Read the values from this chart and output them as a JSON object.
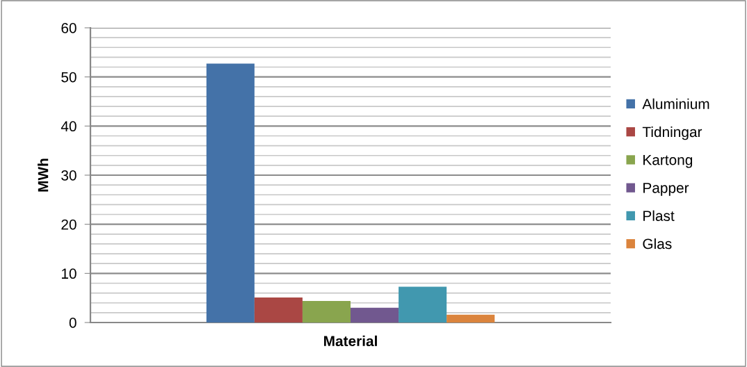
{
  "chart_data": {
    "type": "bar",
    "xlabel": "Material",
    "ylabel": "MWh",
    "categories": [
      null
    ],
    "series": [
      {
        "name": "Aluminium",
        "color": "#4472a8",
        "values": [
          52.7
        ]
      },
      {
        "name": "Tidningar",
        "color": "#aa4744",
        "values": [
          5.1
        ]
      },
      {
        "name": "Kartong",
        "color": "#89a54e",
        "values": [
          4.4
        ]
      },
      {
        "name": "Papper",
        "color": "#71588f",
        "values": [
          3.0
        ]
      },
      {
        "name": "Plast",
        "color": "#4198af",
        "values": [
          7.3
        ]
      },
      {
        "name": "Glas",
        "color": "#db843d",
        "values": [
          1.6
        ]
      }
    ],
    "ylim": [
      0,
      60
    ],
    "yticks": [
      0,
      {
        "value": 2,
        "label": null
      },
      {
        "value": 4,
        "label": null
      },
      {
        "value": 6,
        "label": null
      },
      {
        "value": 8,
        "label": null
      },
      10,
      {
        "value": 12,
        "label": null
      },
      {
        "value": 14,
        "label": null
      },
      {
        "value": 16,
        "label": null
      },
      {
        "value": 18,
        "label": null
      },
      20,
      {
        "value": 22,
        "label": null
      },
      {
        "value": 24,
        "label": null
      },
      {
        "value": 26,
        "label": null
      },
      {
        "value": 28,
        "label": null
      },
      30,
      {
        "value": 32,
        "label": null
      },
      {
        "value": 34,
        "label": null
      },
      {
        "value": 36,
        "label": null
      },
      {
        "value": 38,
        "label": null
      },
      40,
      {
        "value": 42,
        "label": null
      },
      {
        "value": 44,
        "label": null
      },
      {
        "value": 46,
        "label": null
      },
      {
        "value": 48,
        "label": null
      },
      50,
      {
        "value": 52,
        "label": null
      },
      {
        "value": 54,
        "label": null
      },
      {
        "value": 56,
        "label": null
      },
      {
        "value": 58,
        "label": null
      },
      60
    ],
    "grid": "y",
    "legend": "right"
  }
}
